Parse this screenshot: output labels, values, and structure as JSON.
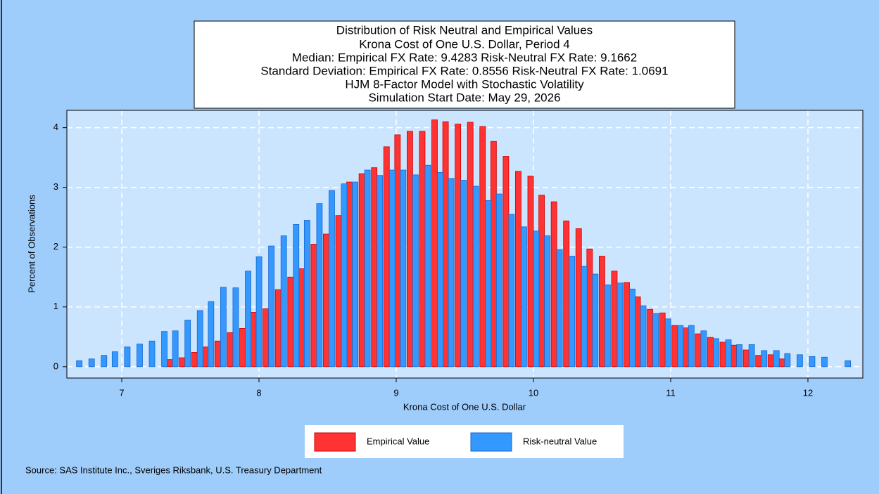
{
  "chart_data": {
    "type": "bar",
    "title": "Distribution of Risk Neutral and Empirical Values",
    "subtitle": [
      "Krona Cost of One U.S. Dollar, Period 4",
      "Median: Empirical FX Rate:  9.4283   Risk-Neutral FX Rate:  9.1662",
      "Standard Deviation: Empirical FX Rate:  0.8556   Risk-Neutral FX Rate:  1.0691",
      "HJM 8-Factor Model with Stochastic Volatility",
      "Simulation Start Date: May 29, 2026"
    ],
    "x_label": "Krona Cost of One U.S. Dollar",
    "y_label": "Percent of Observations",
    "source": "Source: SAS Institute Inc., Sveriges Riksbank, U.S. Treasury Department",
    "x": [
      6.67,
      6.76,
      6.85,
      6.93,
      7.02,
      7.11,
      7.2,
      7.29,
      7.37,
      7.46,
      7.55,
      7.63,
      7.72,
      7.81,
      7.9,
      7.98,
      8.07,
      8.16,
      8.25,
      8.33,
      8.42,
      8.51,
      8.6,
      8.68,
      8.77,
      8.86,
      8.95,
      9.03,
      9.12,
      9.21,
      9.3,
      9.38,
      9.47,
      9.56,
      9.65,
      9.73,
      9.82,
      9.91,
      10.0,
      10.08,
      10.17,
      10.26,
      10.35,
      10.43,
      10.52,
      10.61,
      10.7,
      10.78,
      10.87,
      10.96,
      11.05,
      11.13,
      11.22,
      11.31,
      11.4,
      11.48,
      11.57,
      11.66,
      11.75,
      11.83,
      11.92,
      12.01,
      12.1,
      12.18,
      12.27
    ],
    "series": [
      {
        "name": "Empirical Value",
        "color": "#ff3333",
        "values": [
          null,
          null,
          null,
          null,
          null,
          null,
          null,
          null,
          0.12,
          0.15,
          0.24,
          0.33,
          0.43,
          0.57,
          0.64,
          0.91,
          0.97,
          1.29,
          1.5,
          1.64,
          2.05,
          2.22,
          2.53,
          3.09,
          3.23,
          3.33,
          3.68,
          3.88,
          3.94,
          3.94,
          4.13,
          4.1,
          4.06,
          4.09,
          4.02,
          3.77,
          3.52,
          3.27,
          3.19,
          2.87,
          2.76,
          2.44,
          2.31,
          1.97,
          1.85,
          1.6,
          1.41,
          1.17,
          0.96,
          0.9,
          0.69,
          0.65,
          0.55,
          0.49,
          0.41,
          0.36,
          0.28,
          0.19,
          0.2,
          0.13,
          null,
          null,
          null,
          null,
          null
        ]
      },
      {
        "name": "Risk-neutral Value",
        "color": "#3399ff",
        "values": [
          0.1,
          0.13,
          0.19,
          0.25,
          0.33,
          0.38,
          0.43,
          0.59,
          0.6,
          0.78,
          0.94,
          1.09,
          1.33,
          1.32,
          1.6,
          1.84,
          2.02,
          2.19,
          2.38,
          2.45,
          2.73,
          2.95,
          3.06,
          3.09,
          3.29,
          3.2,
          3.29,
          3.29,
          3.21,
          3.37,
          3.25,
          3.15,
          3.12,
          3.02,
          2.78,
          2.89,
          2.55,
          2.34,
          2.27,
          2.19,
          1.96,
          1.85,
          1.68,
          1.55,
          1.37,
          1.4,
          1.3,
          1.02,
          0.89,
          0.8,
          0.69,
          0.69,
          0.6,
          0.47,
          0.45,
          0.37,
          0.37,
          0.27,
          0.27,
          0.22,
          0.2,
          0.17,
          0.16,
          null,
          0.1
        ]
      }
    ],
    "xlim": [
      6.6,
      12.4
    ],
    "xticks": [
      7,
      8,
      9,
      10,
      11,
      12
    ],
    "ylim": [
      -0.19,
      4.29
    ],
    "yticks": [
      0,
      1,
      2,
      3,
      4
    ],
    "grid": true,
    "legend": "bottom"
  }
}
